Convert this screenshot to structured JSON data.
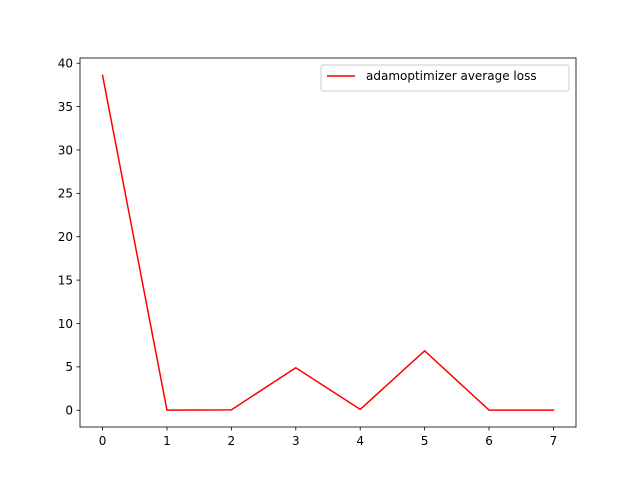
{
  "chart_data": {
    "type": "line",
    "title": "",
    "xlabel": "",
    "ylabel": "",
    "x": [
      0,
      1,
      2,
      3,
      4,
      5,
      6,
      7
    ],
    "series": [
      {
        "name": "adamoptimizer average loss",
        "color": "#ff0000",
        "values": [
          38.6,
          0.02,
          0.05,
          4.9,
          0.1,
          6.85,
          0.02,
          0.02
        ]
      }
    ],
    "xlim": [
      -0.35,
      7.35
    ],
    "ylim": [
      -1.93,
      40.6
    ],
    "xticks": [
      0,
      1,
      2,
      3,
      4,
      5,
      6,
      7
    ],
    "xtick_labels": [
      "0",
      "1",
      "2",
      "3",
      "4",
      "5",
      "6",
      "7"
    ],
    "yticks": [
      0,
      5,
      10,
      15,
      20,
      25,
      30,
      35,
      40
    ],
    "ytick_labels": [
      "0",
      "5",
      "10",
      "15",
      "20",
      "25",
      "30",
      "35",
      "40"
    ],
    "grid": false,
    "legend_position": "upper right"
  }
}
